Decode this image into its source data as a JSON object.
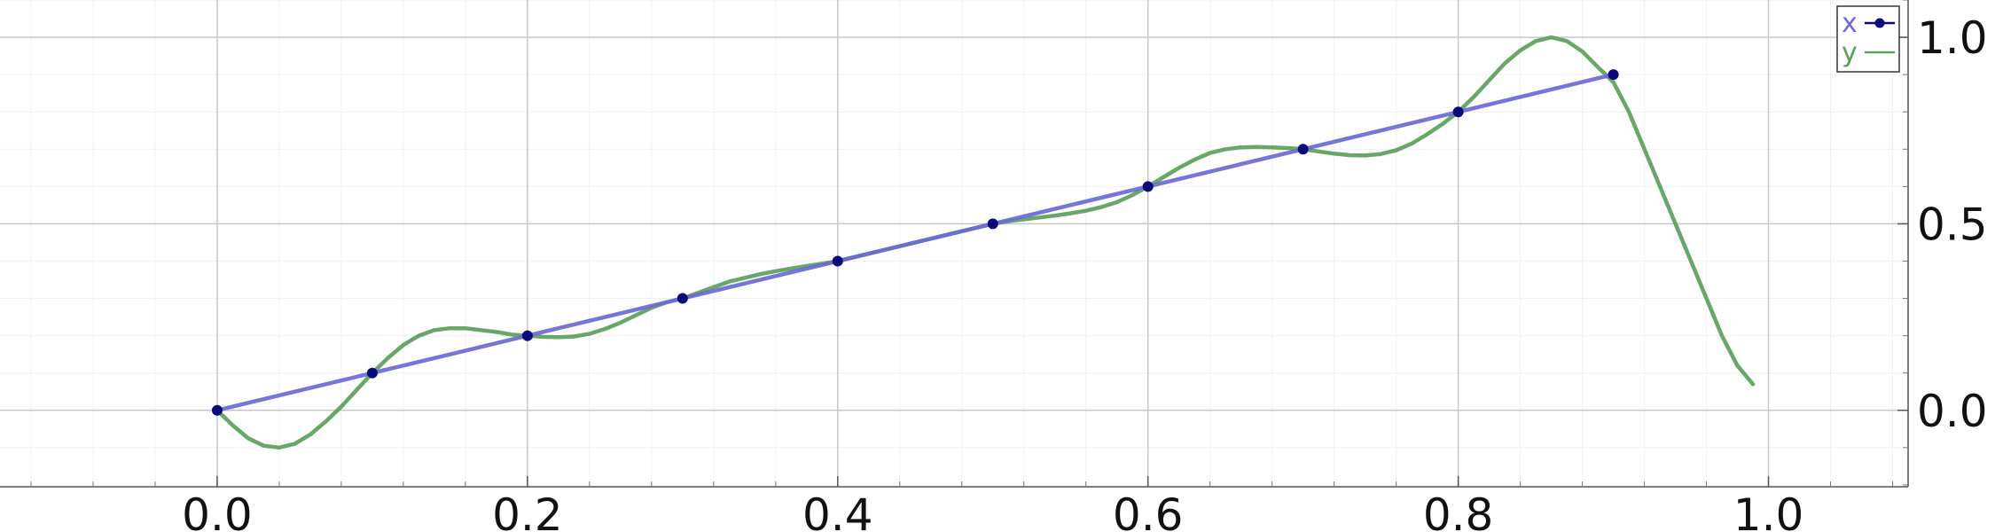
{
  "chart_data": {
    "type": "line",
    "title": "",
    "xlabel": "",
    "ylabel": "",
    "xlim": [
      -0.14,
      1.09
    ],
    "ylim": [
      -0.205,
      1.1
    ],
    "xticks": [
      0.0,
      0.2,
      0.4,
      0.6,
      0.8,
      1.0
    ],
    "xtick_labels": [
      "0.0",
      "0.2",
      "0.4",
      "0.6",
      "0.8",
      "1.0"
    ],
    "yticks": [
      0.0,
      0.5,
      1.0
    ],
    "ytick_labels": [
      "0.0",
      "0.5",
      "1.0"
    ],
    "y_axis_side": "right",
    "grid": true,
    "minor_grid": true,
    "legend": "top-right",
    "series": [
      {
        "name": "x",
        "color": "#6a6ad6",
        "marker_color": "#0a0a7a",
        "markers": true,
        "x": [
          0.0,
          0.1,
          0.2,
          0.3,
          0.4,
          0.5,
          0.6,
          0.7,
          0.8,
          0.9
        ],
        "y": [
          0.0,
          0.1,
          0.2,
          0.3,
          0.4,
          0.5,
          0.6,
          0.7,
          0.8,
          0.9
        ]
      },
      {
        "name": "y",
        "color": "#5aa05a",
        "markers": false,
        "x": [
          0.0,
          0.01,
          0.02,
          0.03,
          0.04,
          0.05,
          0.06,
          0.07,
          0.08,
          0.09,
          0.1,
          0.11,
          0.12,
          0.13,
          0.14,
          0.15,
          0.16,
          0.17,
          0.18,
          0.19,
          0.2,
          0.21,
          0.22,
          0.23,
          0.24,
          0.25,
          0.26,
          0.27,
          0.28,
          0.29,
          0.3,
          0.31,
          0.32,
          0.33,
          0.34,
          0.35,
          0.36,
          0.37,
          0.38,
          0.39,
          0.4,
          0.41,
          0.42,
          0.43,
          0.44,
          0.45,
          0.46,
          0.47,
          0.48,
          0.49,
          0.5,
          0.51,
          0.52,
          0.53,
          0.54,
          0.55,
          0.56,
          0.57,
          0.58,
          0.59,
          0.6,
          0.61,
          0.62,
          0.63,
          0.64,
          0.65,
          0.66,
          0.67,
          0.68,
          0.69,
          0.7,
          0.71,
          0.72,
          0.73,
          0.74,
          0.75,
          0.76,
          0.77,
          0.78,
          0.79,
          0.8,
          0.81,
          0.82,
          0.83,
          0.84,
          0.85,
          0.86,
          0.87,
          0.88,
          0.89,
          0.9,
          0.91,
          0.92,
          0.93,
          0.94,
          0.95,
          0.96,
          0.97,
          0.98,
          0.99
        ],
        "y": [
          0.0,
          -0.04,
          -0.075,
          -0.095,
          -0.1,
          -0.09,
          -0.065,
          -0.03,
          0.01,
          0.055,
          0.1,
          0.14,
          0.175,
          0.2,
          0.215,
          0.22,
          0.22,
          0.215,
          0.21,
          0.203,
          0.2,
          0.197,
          0.196,
          0.198,
          0.205,
          0.218,
          0.235,
          0.255,
          0.275,
          0.29,
          0.3,
          0.315,
          0.33,
          0.345,
          0.355,
          0.365,
          0.373,
          0.38,
          0.387,
          0.393,
          0.4,
          0.41,
          0.42,
          0.43,
          0.44,
          0.45,
          0.46,
          0.47,
          0.48,
          0.49,
          0.5,
          0.507,
          0.512,
          0.517,
          0.522,
          0.528,
          0.535,
          0.545,
          0.558,
          0.577,
          0.6,
          0.625,
          0.65,
          0.672,
          0.69,
          0.7,
          0.705,
          0.706,
          0.705,
          0.703,
          0.7,
          0.694,
          0.688,
          0.684,
          0.683,
          0.687,
          0.697,
          0.715,
          0.74,
          0.768,
          0.8,
          0.84,
          0.885,
          0.93,
          0.965,
          0.99,
          1.0,
          0.99,
          0.962,
          0.92,
          0.88,
          0.8,
          0.7,
          0.6,
          0.5,
          0.4,
          0.3,
          0.2,
          0.12,
          0.07
        ]
      }
    ]
  }
}
